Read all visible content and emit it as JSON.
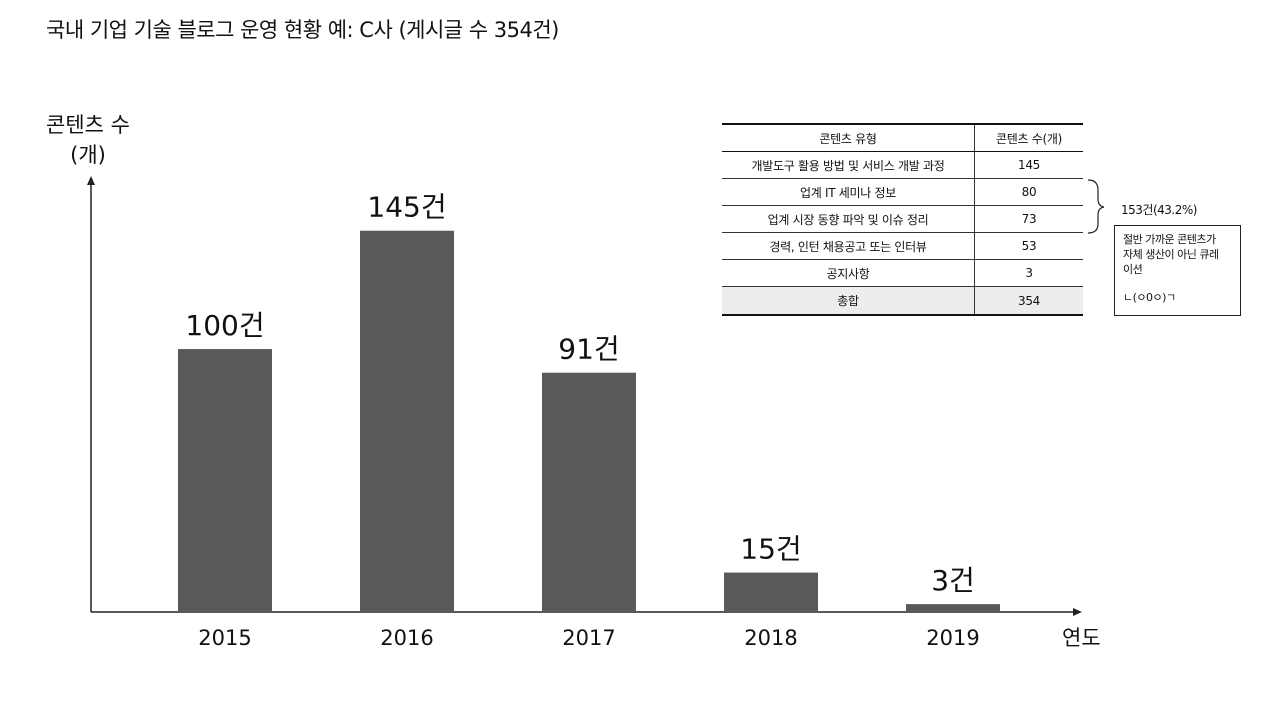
{
  "page": {
    "title": "국내 기업 기술 블로그 운영 현황 예: C사 (게시글 수 354건)"
  },
  "chart_data": {
    "type": "bar",
    "title": "국내 기업 기술 블로그 운영 현황 예: C사 (게시글 수 354건)",
    "ylabel": [
      "콘텐츠 수",
      "(개)"
    ],
    "xlabel": "연도",
    "categories": [
      "2015",
      "2016",
      "2017",
      "2018",
      "2019"
    ],
    "values": [
      100,
      145,
      91,
      15,
      3
    ],
    "data_labels": [
      "100건",
      "145건",
      "91건",
      "15건",
      "3건"
    ],
    "ylim": [
      0,
      170
    ],
    "grid": false,
    "bar_color": "#595959",
    "axis_color": "#222222"
  },
  "table": {
    "headers": [
      "콘텐츠 유형",
      "콘텐츠 수(개)"
    ],
    "rows": [
      [
        "개발도구 활용 방법 및 서비스 개발 과정",
        "145"
      ],
      [
        "업계 IT 세미나 정보",
        "80"
      ],
      [
        "업계 시장 동향 파악 및 이슈 정리",
        "73"
      ],
      [
        "경력, 인턴 채용공고 또는 인터뷰",
        "53"
      ],
      [
        "공지사항",
        "3"
      ]
    ],
    "total": [
      "총합",
      "354"
    ]
  },
  "annotation": {
    "brace_label": "153건(43.2%)",
    "note_lines": [
      "절반 가까운 콘텐츠가",
      "자체 생산이 아닌 큐레",
      "이션"
    ],
    "note_emoticon": "ㄴ(ㅇ0ㅇ)ㄱ"
  }
}
